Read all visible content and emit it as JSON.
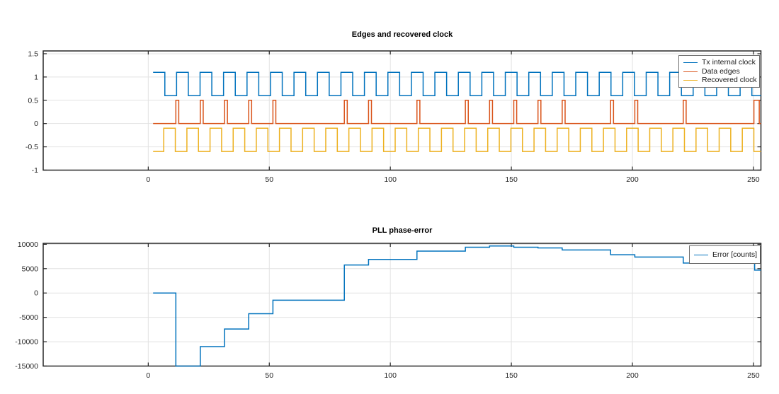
{
  "figure": {
    "background": "#ffffff"
  },
  "palette": {
    "series_blue": "#0072BD",
    "series_orange": "#D95319",
    "series_yellow": "#EDB120",
    "axis": "#262626",
    "grid": "#e2e2e2",
    "tick_label": "#262626",
    "legend_border": "#6e6e6e"
  },
  "chart_data": [
    {
      "type": "line",
      "title": "Edges and recovered clock",
      "xlabel": "",
      "ylabel": "",
      "xlim": [
        -43.4,
        253.1
      ],
      "ylim": [
        -1,
        1.56
      ],
      "xticks": [
        0,
        50,
        100,
        150,
        200,
        250
      ],
      "yticks": [
        -1,
        -0.5,
        0,
        0.5,
        1,
        1.5
      ],
      "grid": true,
      "legend": {
        "position": "northeast",
        "entries": [
          {
            "label": "Tx internal clock",
            "color": "#0072BD"
          },
          {
            "label": "Data edges",
            "color": "#D95319"
          },
          {
            "label": "Recovered clock",
            "color": "#EDB120"
          }
        ]
      },
      "series": [
        {
          "name": "Tx internal clock",
          "color": "#0072BD",
          "kind": "square",
          "x_start": 2,
          "x_end": 253.1,
          "level_start": 1.1,
          "level_alt": 0.6,
          "first_edge": 6.85,
          "half_period": 4.85
        },
        {
          "name": "Data edges",
          "color": "#D95319",
          "kind": "pulses",
          "x_start": 2,
          "x_end": 253.1,
          "baseline": 0,
          "pulse_level": 0.5,
          "pulses": [
            [
              11.4,
              1.2
            ],
            [
              21.5,
              1.2
            ],
            [
              31.5,
              1.2
            ],
            [
              41.5,
              1.2
            ],
            [
              51.5,
              1.2
            ],
            [
              81,
              1.2
            ],
            [
              91,
              1.2
            ],
            [
              111,
              1.2
            ],
            [
              131,
              1.2
            ],
            [
              141,
              1.2
            ],
            [
              151,
              1.2
            ],
            [
              161,
              1.2
            ],
            [
              171,
              1.2
            ],
            [
              191,
              1.2
            ],
            [
              201,
              1.2
            ],
            [
              221,
              1.2
            ],
            [
              250.2,
              2.2
            ]
          ]
        },
        {
          "name": "Recovered clock",
          "color": "#EDB120",
          "kind": "square",
          "x_start": 2,
          "x_end": 253.1,
          "level_start": -0.6,
          "level_alt": -0.1,
          "first_edge": 6.4,
          "half_period": 4.78
        }
      ]
    },
    {
      "type": "line",
      "title": "PLL phase-error",
      "xlabel": "",
      "ylabel": "",
      "xlim": [
        -43.4,
        253.1
      ],
      "ylim": [
        -15000,
        10200
      ],
      "xticks": [
        0,
        50,
        100,
        150,
        200,
        250
      ],
      "yticks": [
        -15000,
        -10000,
        -5000,
        0,
        5000,
        10000
      ],
      "grid": true,
      "legend": {
        "position": "northeast",
        "entries": [
          {
            "label": "Error [counts]",
            "color": "#0072BD"
          }
        ]
      },
      "series": [
        {
          "name": "Error [counts]",
          "color": "#0072BD",
          "kind": "steps",
          "x_start": 2,
          "x_end": 253.1,
          "steps": [
            [
              2,
              0
            ],
            [
              11.4,
              -15000
            ],
            [
              21.5,
              -11000
            ],
            [
              31.5,
              -7400
            ],
            [
              41.5,
              -4250
            ],
            [
              51.5,
              -1480
            ],
            [
              81,
              5750
            ],
            [
              91,
              6900
            ],
            [
              111,
              8600
            ],
            [
              131,
              9400
            ],
            [
              141,
              9650
            ],
            [
              151,
              9400
            ],
            [
              161,
              9250
            ],
            [
              171,
              8840
            ],
            [
              191,
              7860
            ],
            [
              201,
              7380
            ],
            [
              221,
              6150
            ],
            [
              250.5,
              4700
            ]
          ]
        }
      ]
    }
  ]
}
